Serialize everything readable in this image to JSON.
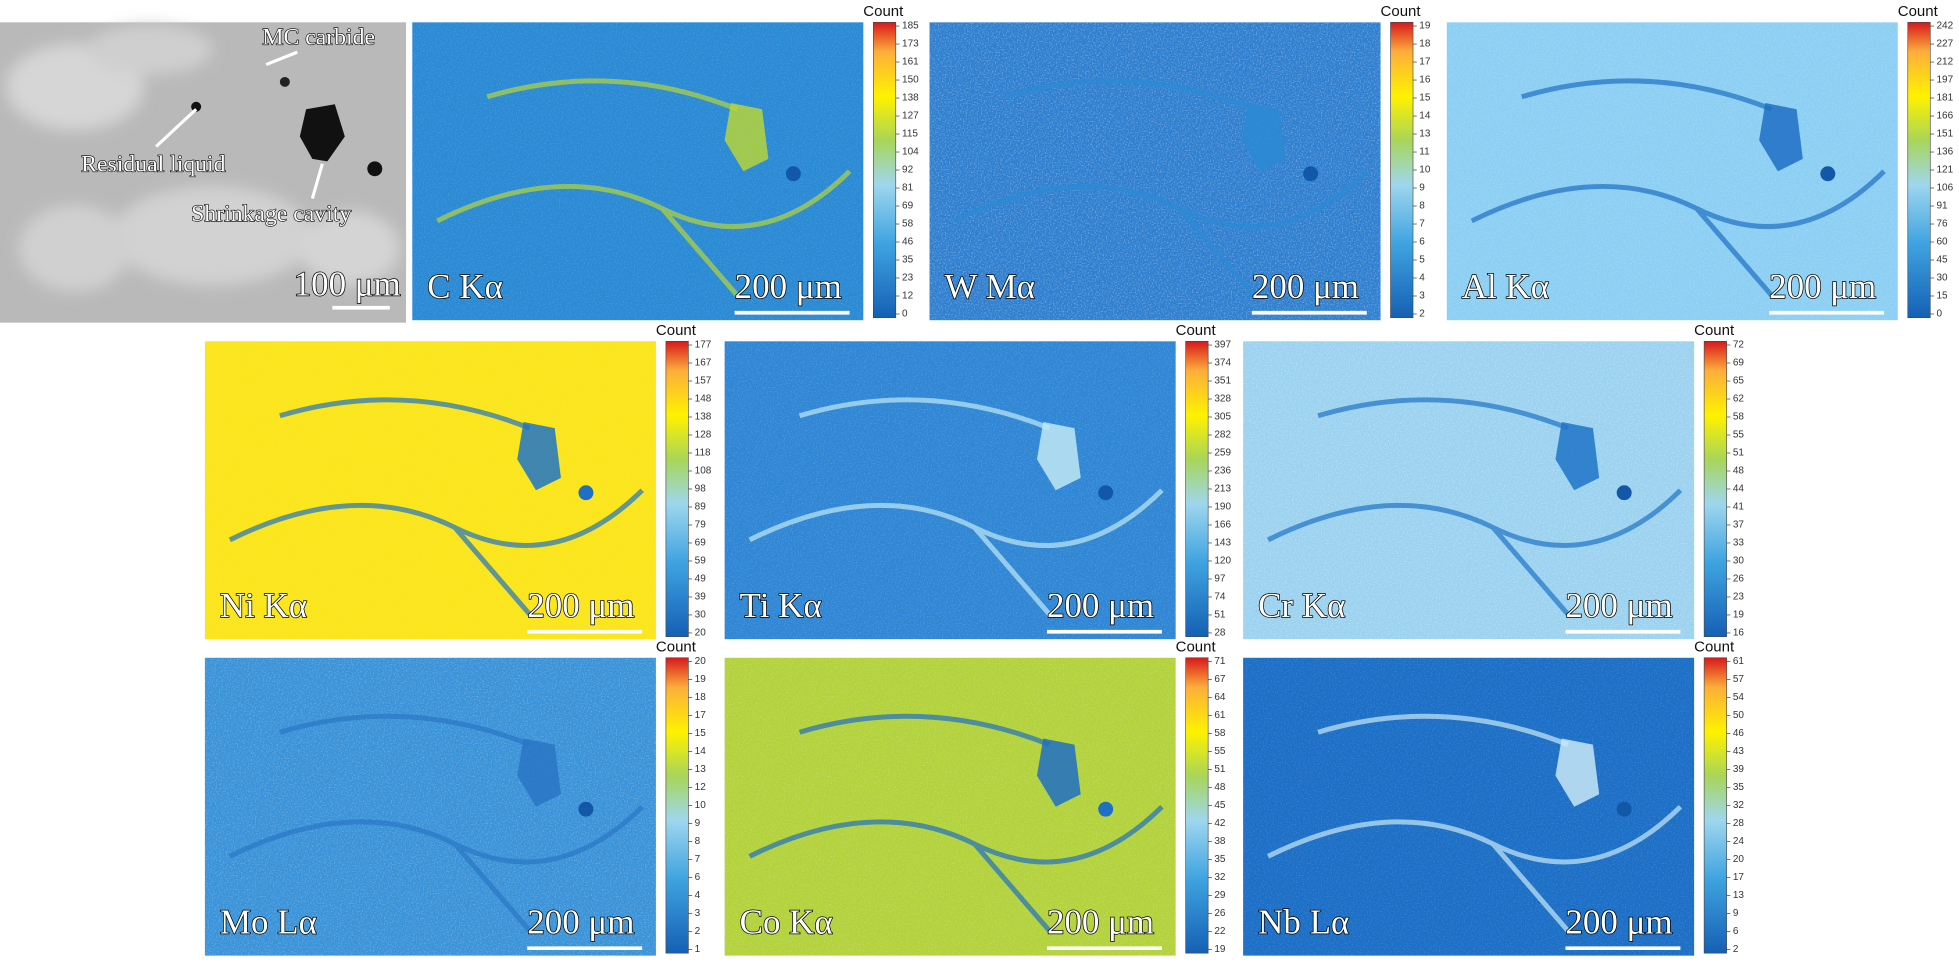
{
  "sem_panel": {
    "annotations": [
      "MC carbide",
      "Residual liquid",
      "Shrinkage cavity"
    ],
    "scale_bar": "100 μm"
  },
  "maps": [
    {
      "label": "C Kα",
      "scale_bar": "200 μm",
      "colorbar_title": "Count",
      "colorbar_ticks": [
        185,
        173,
        161,
        150,
        138,
        127,
        115,
        104,
        92,
        81,
        69,
        58,
        46,
        35,
        23,
        12,
        0
      ]
    },
    {
      "label": "W Mα",
      "scale_bar": "200 μm",
      "colorbar_title": "Count",
      "colorbar_ticks": [
        19,
        18,
        17,
        16,
        15,
        14,
        13,
        11,
        10,
        9,
        8,
        7,
        6,
        5,
        4,
        3,
        2
      ]
    },
    {
      "label": "Al Kα",
      "scale_bar": "200 μm",
      "colorbar_title": "Count",
      "colorbar_ticks": [
        242,
        227,
        212,
        197,
        181,
        166,
        151,
        136,
        121,
        106,
        91,
        76,
        60,
        45,
        30,
        15,
        0
      ]
    },
    {
      "label": "Ni Kα",
      "scale_bar": "200 μm",
      "colorbar_title": "Count",
      "colorbar_ticks": [
        177,
        167,
        157,
        148,
        138,
        128,
        118,
        108,
        98,
        89,
        79,
        69,
        59,
        49,
        39,
        30,
        20
      ]
    },
    {
      "label": "Ti Kα",
      "scale_bar": "200 μm",
      "colorbar_title": "Count",
      "colorbar_ticks": [
        397,
        374,
        351,
        328,
        305,
        282,
        259,
        236,
        213,
        190,
        166,
        143,
        120,
        97,
        74,
        51,
        28
      ]
    },
    {
      "label": "Cr Kα",
      "scale_bar": "200 μm",
      "colorbar_title": "Count",
      "colorbar_ticks": [
        72,
        69,
        65,
        62,
        58,
        55,
        51,
        48,
        44,
        41,
        37,
        33,
        30,
        26,
        23,
        19,
        16
      ]
    },
    {
      "label": "Mo Lα",
      "scale_bar": "200 μm",
      "colorbar_title": "Count",
      "colorbar_ticks": [
        20,
        19,
        18,
        17,
        15,
        14,
        13,
        12,
        10,
        9,
        8,
        7,
        6,
        4,
        3,
        2,
        1
      ]
    },
    {
      "label": "Co Kα",
      "scale_bar": "200 μm",
      "colorbar_title": "Count",
      "colorbar_ticks": [
        71,
        67,
        64,
        61,
        58,
        55,
        51,
        48,
        45,
        42,
        38,
        35,
        32,
        29,
        26,
        22,
        19
      ]
    },
    {
      "label": "Nb Lα",
      "scale_bar": "200 μm",
      "colorbar_title": "Count",
      "colorbar_ticks": [
        61,
        57,
        54,
        50,
        46,
        43,
        39,
        35,
        32,
        28,
        24,
        20,
        17,
        13,
        9,
        6,
        2
      ]
    }
  ]
}
